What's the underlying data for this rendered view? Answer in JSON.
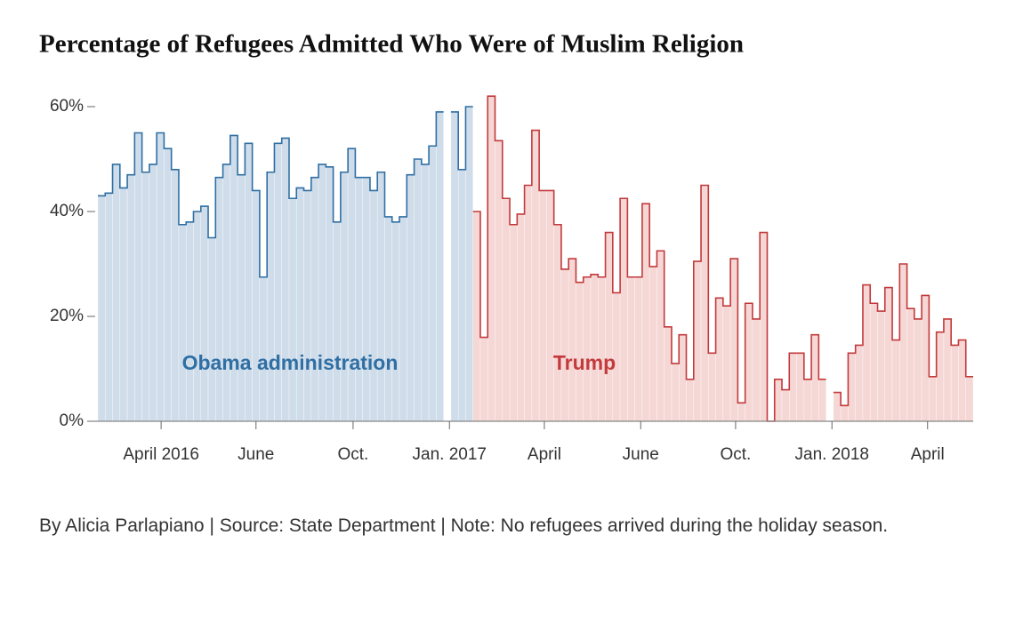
{
  "chart_data": {
    "type": "step-area",
    "title": "Percentage of Refugees Admitted Who Were of Muslim Religion",
    "byline": "By Alicia Parlapiano | Source: State Department | Note: No refugees arrived during the holiday season.",
    "xlim": [
      0,
      119
    ],
    "xticks": [
      {
        "value": 8.6,
        "label": "April 2016"
      },
      {
        "value": 21.5,
        "label": "June"
      },
      {
        "value": 34.7,
        "label": "Oct."
      },
      {
        "value": 47.8,
        "label": "Jan. 2017"
      },
      {
        "value": 60.7,
        "label": "April"
      },
      {
        "value": 73.8,
        "label": "June"
      },
      {
        "value": 86.7,
        "label": "Oct."
      },
      {
        "value": 99.8,
        "label": "Jan. 2018"
      },
      {
        "value": 112.8,
        "label": "April"
      }
    ],
    "ylim": [
      0,
      65
    ],
    "yticks": [
      {
        "value": 0,
        "label": "0%"
      },
      {
        "value": 20,
        "label": "20%"
      },
      {
        "value": 40,
        "label": "40%"
      },
      {
        "value": 60,
        "label": "60%"
      }
    ],
    "series": [
      {
        "name": "Obama administration",
        "color": "#2f6fa3",
        "fill": "#cfdcea",
        "values": [
          43,
          43.5,
          49,
          44.5,
          47,
          55,
          47.5,
          49,
          55,
          52,
          48,
          37.5,
          38,
          40,
          41,
          35,
          46.5,
          49,
          54.5,
          47,
          53,
          44,
          27.5,
          47.5,
          53,
          54,
          42.5,
          44.5,
          44,
          46.5,
          49,
          48.5,
          38,
          47.5,
          52,
          46.5,
          46.5,
          44,
          47.5,
          39,
          38,
          39,
          47,
          50,
          49,
          52.5,
          59,
          null,
          59,
          48,
          60,
          null,
          null,
          null,
          null,
          null,
          null,
          null,
          null,
          null,
          null,
          null,
          null,
          null,
          null,
          null,
          null,
          null,
          null,
          null,
          null,
          null,
          null,
          null,
          null,
          null,
          null,
          null,
          null,
          null,
          null,
          null,
          null,
          null,
          null,
          null,
          null,
          null,
          null,
          null,
          null,
          null,
          null,
          null,
          null,
          null,
          null,
          null,
          null,
          null,
          null,
          null,
          null,
          null,
          null,
          null,
          null,
          null,
          null,
          null,
          null,
          null,
          null,
          null,
          null,
          null,
          null,
          null,
          null
        ]
      },
      {
        "name": "Trump",
        "color": "#c23a3c",
        "fill": "#f5d7d5",
        "values": [
          null,
          null,
          null,
          null,
          null,
          null,
          null,
          null,
          null,
          null,
          null,
          null,
          null,
          null,
          null,
          null,
          null,
          null,
          null,
          null,
          null,
          null,
          null,
          null,
          null,
          null,
          null,
          null,
          null,
          null,
          null,
          null,
          null,
          null,
          null,
          null,
          null,
          null,
          null,
          null,
          null,
          null,
          null,
          null,
          null,
          null,
          null,
          null,
          null,
          null,
          null,
          40,
          16,
          62,
          53.5,
          42.5,
          37.5,
          39.5,
          45,
          55.5,
          44,
          44,
          37.5,
          29,
          31,
          26.5,
          27.5,
          28,
          27.5,
          36,
          24.5,
          42.5,
          27.5,
          27.5,
          41.5,
          29.5,
          32.5,
          18,
          11,
          16.5,
          8,
          30.5,
          45,
          13,
          23.5,
          22,
          31,
          3.5,
          22.5,
          19.5,
          36,
          0,
          8,
          6,
          13,
          13,
          8,
          16.5,
          8,
          null,
          5.5,
          3,
          13,
          14.5,
          26,
          22.5,
          21,
          25.5,
          15.5,
          30,
          21.5,
          19.5,
          24,
          8.5,
          17,
          19.5,
          14.5,
          15.5,
          8.5
        ]
      }
    ]
  }
}
